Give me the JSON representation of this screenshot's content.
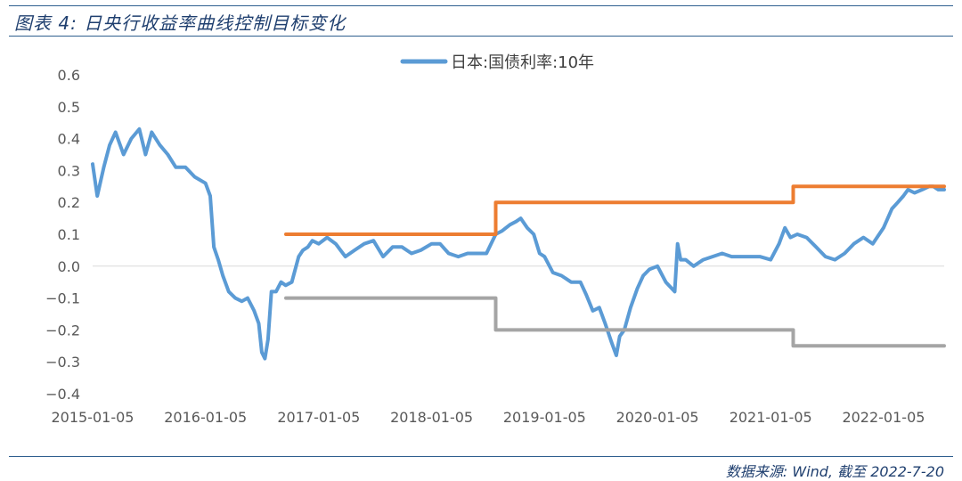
{
  "figure": {
    "title": "图表 4: 日央行收益率曲线控制目标变化",
    "source": "数据来源: Wind, 截至 2022-7-20"
  },
  "chart_data": {
    "type": "line",
    "legend": "日本:国债利率:10年",
    "legend_position": "top-center",
    "grid": false,
    "x_ticks": [
      "2015-01-05",
      "2016-01-05",
      "2017-01-05",
      "2018-01-05",
      "2019-01-05",
      "2020-01-05",
      "2021-01-05",
      "2022-01-05"
    ],
    "y_ticks": [
      "0.6",
      "0.5",
      "0.4",
      "0.3",
      "0.2",
      "0.1",
      "0.0",
      "−0.1",
      "−0.2",
      "−0.3",
      "−0.4"
    ],
    "xlim": [
      "2015-01-05",
      "2022-07-20"
    ],
    "ylim": [
      -0.4,
      0.6
    ],
    "series": [
      {
        "name": "日本:国债利率:10年",
        "color": "#5b9bd5",
        "x": [
          "2015-01-05",
          "2015-01-20",
          "2015-02-10",
          "2015-03-01",
          "2015-03-20",
          "2015-04-15",
          "2015-05-10",
          "2015-06-05",
          "2015-06-25",
          "2015-07-15",
          "2015-08-10",
          "2015-09-05",
          "2015-10-01",
          "2015-11-01",
          "2015-12-01",
          "2016-01-05",
          "2016-01-20",
          "2016-02-01",
          "2016-02-15",
          "2016-03-01",
          "2016-03-20",
          "2016-04-10",
          "2016-05-01",
          "2016-05-20",
          "2016-06-10",
          "2016-06-25",
          "2016-07-05",
          "2016-07-15",
          "2016-07-25",
          "2016-08-05",
          "2016-08-20",
          "2016-09-05",
          "2016-09-20",
          "2016-10-10",
          "2016-11-01",
          "2016-11-15",
          "2016-12-01",
          "2016-12-15",
          "2017-01-05",
          "2017-02-01",
          "2017-03-01",
          "2017-04-01",
          "2017-05-01",
          "2017-06-01",
          "2017-07-01",
          "2017-08-01",
          "2017-09-01",
          "2017-10-01",
          "2017-11-01",
          "2017-12-01",
          "2018-01-05",
          "2018-02-01",
          "2018-03-01",
          "2018-04-01",
          "2018-05-01",
          "2018-06-01",
          "2018-07-01",
          "2018-07-31",
          "2018-08-20",
          "2018-09-15",
          "2018-10-05",
          "2018-10-20",
          "2018-11-10",
          "2018-12-01",
          "2018-12-20",
          "2019-01-05",
          "2019-02-01",
          "2019-03-01",
          "2019-04-01",
          "2019-05-01",
          "2019-05-20",
          "2019-06-10",
          "2019-07-01",
          "2019-07-20",
          "2019-08-10",
          "2019-08-25",
          "2019-09-05",
          "2019-09-20",
          "2019-10-10",
          "2019-11-01",
          "2019-11-20",
          "2019-12-10",
          "2020-01-05",
          "2020-02-01",
          "2020-03-01",
          "2020-03-10",
          "2020-03-20",
          "2020-04-05",
          "2020-05-01",
          "2020-06-01",
          "2020-07-01",
          "2020-08-01",
          "2020-09-01",
          "2020-10-01",
          "2020-11-01",
          "2020-12-01",
          "2021-01-05",
          "2021-02-01",
          "2021-02-20",
          "2021-03-10",
          "2021-04-01",
          "2021-05-01",
          "2021-06-01",
          "2021-07-01",
          "2021-08-01",
          "2021-09-01",
          "2021-10-01",
          "2021-11-01",
          "2021-12-01",
          "2022-01-05",
          "2022-02-01",
          "2022-02-20",
          "2022-03-10",
          "2022-03-25",
          "2022-04-15",
          "2022-05-10",
          "2022-06-01",
          "2022-06-15",
          "2022-07-01",
          "2022-07-20"
        ],
        "y": [
          0.32,
          0.22,
          0.31,
          0.38,
          0.42,
          0.35,
          0.4,
          0.43,
          0.35,
          0.42,
          0.38,
          0.35,
          0.31,
          0.31,
          0.28,
          0.26,
          0.22,
          0.06,
          0.02,
          -0.03,
          -0.08,
          -0.1,
          -0.11,
          -0.1,
          -0.14,
          -0.18,
          -0.27,
          -0.29,
          -0.23,
          -0.08,
          -0.08,
          -0.05,
          -0.06,
          -0.05,
          0.03,
          0.05,
          0.06,
          0.08,
          0.07,
          0.09,
          0.07,
          0.03,
          0.05,
          0.07,
          0.08,
          0.03,
          0.06,
          0.06,
          0.04,
          0.05,
          0.07,
          0.07,
          0.04,
          0.03,
          0.04,
          0.04,
          0.04,
          0.1,
          0.11,
          0.13,
          0.14,
          0.15,
          0.12,
          0.1,
          0.04,
          0.03,
          -0.02,
          -0.03,
          -0.05,
          -0.05,
          -0.09,
          -0.14,
          -0.13,
          -0.18,
          -0.24,
          -0.28,
          -0.22,
          -0.2,
          -0.13,
          -0.07,
          -0.03,
          -0.01,
          0.0,
          -0.05,
          -0.08,
          0.07,
          0.02,
          0.02,
          0.0,
          0.02,
          0.03,
          0.04,
          0.03,
          0.03,
          0.03,
          0.03,
          0.02,
          0.07,
          0.12,
          0.09,
          0.1,
          0.09,
          0.06,
          0.03,
          0.02,
          0.04,
          0.07,
          0.09,
          0.07,
          0.12,
          0.18,
          0.2,
          0.22,
          0.24,
          0.23,
          0.24,
          0.25,
          0.25,
          0.24,
          0.24
        ]
      },
      {
        "name": "",
        "color": "#ed7d31",
        "x": [
          "2016-09-21",
          "2018-07-31",
          "2018-07-31",
          "2021-03-19",
          "2021-03-19",
          "2022-07-20"
        ],
        "y": [
          0.1,
          0.1,
          0.2,
          0.2,
          0.25,
          0.25
        ]
      },
      {
        "name": "",
        "color": "#a5a5a5",
        "x": [
          "2016-09-21",
          "2018-07-31",
          "2018-07-31",
          "2021-03-19",
          "2021-03-19",
          "2022-07-20"
        ],
        "y": [
          -0.1,
          -0.1,
          -0.2,
          -0.2,
          -0.25,
          -0.25
        ]
      }
    ]
  }
}
